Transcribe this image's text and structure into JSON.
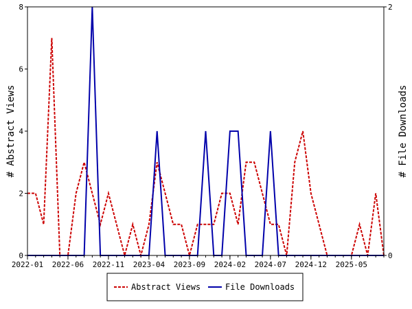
{
  "chart_data": {
    "type": "line",
    "title": "",
    "xlabel": "",
    "ylabel": "# Abstract Views",
    "y2label": "# File Downloads",
    "ylim": [
      0,
      8
    ],
    "y2lim": [
      0,
      2
    ],
    "yticks": [
      "0",
      "2",
      "4",
      "6",
      "8"
    ],
    "y2ticks": [
      "0",
      "2"
    ],
    "x_tick_labels": [
      "2022-01",
      "2022-06",
      "2022-11",
      "2023-04",
      "2023-09",
      "2024-02",
      "2024-07",
      "2024-12",
      "2025-05"
    ],
    "x_tick_positions": [
      0,
      5,
      10,
      15,
      20,
      25,
      30,
      35,
      40
    ],
    "x_last": 44,
    "grid": false,
    "legend_position": "bottom",
    "series": [
      {
        "name": "Abstract Views",
        "axis": "left",
        "color": "#cc0000",
        "style": "dashed",
        "values": [
          2,
          2,
          1,
          7,
          0,
          0,
          2,
          3,
          2,
          1,
          2,
          1,
          0,
          1,
          0,
          1,
          3,
          2,
          1,
          1,
          0,
          1,
          1,
          1,
          2,
          2,
          1,
          3,
          3,
          2,
          1,
          1,
          0,
          3,
          4,
          2,
          1,
          0,
          0,
          0,
          0,
          1,
          0,
          2,
          0
        ]
      },
      {
        "name": "File Downloads",
        "axis": "right",
        "color": "#0000aa",
        "style": "solid",
        "values": [
          0,
          0,
          0,
          0,
          0,
          0,
          0,
          0,
          2,
          0,
          0,
          0,
          0,
          0,
          0,
          0,
          1,
          0,
          0,
          0,
          0,
          0,
          1,
          0,
          0,
          1,
          1,
          0,
          0,
          0,
          1,
          0,
          0,
          0,
          0,
          0,
          0,
          0,
          0,
          0,
          0,
          0,
          0,
          0,
          0
        ]
      }
    ]
  }
}
